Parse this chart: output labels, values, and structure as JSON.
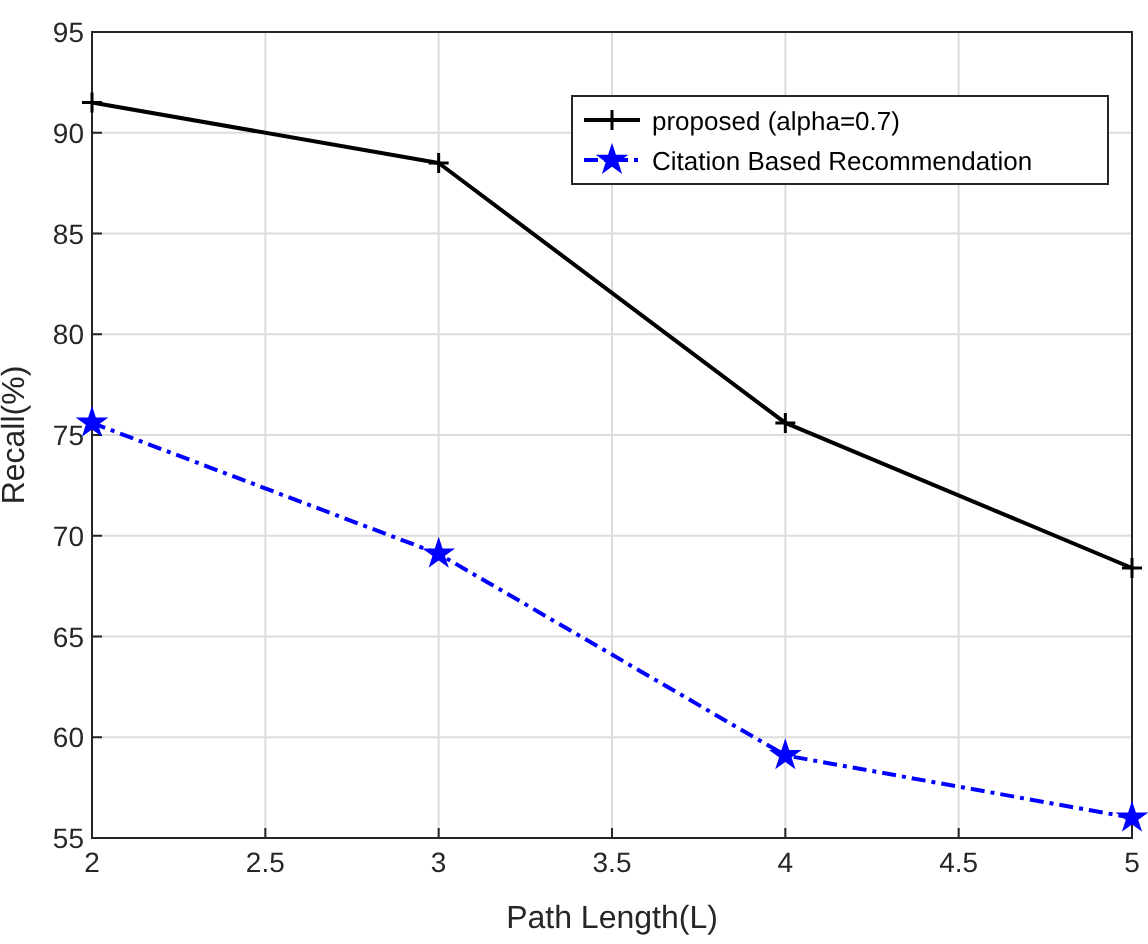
{
  "chart_data": {
    "type": "line",
    "xlabel": "Path Length(L)",
    "ylabel": "Recall(%)",
    "x": [
      2,
      3,
      4,
      5
    ],
    "series": [
      {
        "name": "proposed (alpha=0.7)",
        "color": "#000000",
        "values": [
          91.5,
          88.5,
          75.6,
          68.4
        ],
        "marker": "cross",
        "line_style": "solid"
      },
      {
        "name": "Citation Based Recommendation",
        "color": "#0000ff",
        "values": [
          75.6,
          69.1,
          59.1,
          56.0
        ],
        "marker": "star",
        "line_style": "dashed"
      }
    ],
    "xlim": [
      2,
      5
    ],
    "xticks": [
      2,
      2.5,
      3,
      3.5,
      4,
      4.5,
      5
    ],
    "ylim": [
      55,
      95
    ],
    "yticks": [
      55,
      60,
      65,
      70,
      75,
      80,
      85,
      90,
      95
    ],
    "grid": true,
    "legend": "top right"
  }
}
